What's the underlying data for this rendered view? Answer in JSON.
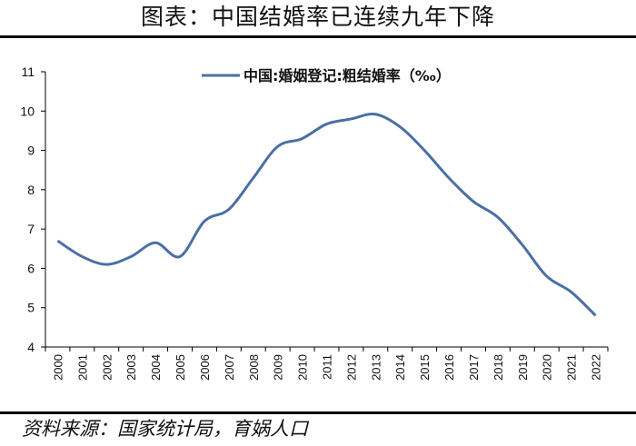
{
  "header": {
    "title": "图表：中国结婚率已连续九年下降"
  },
  "footer": {
    "source": "资料来源：国家统计局，育娲人口"
  },
  "chart_data": {
    "type": "line",
    "title": "",
    "xlabel": "",
    "ylabel": "",
    "categories": [
      "2000",
      "2001",
      "2002",
      "2003",
      "2004",
      "2005",
      "2006",
      "2007",
      "2008",
      "2009",
      "2010",
      "2011",
      "2012",
      "2013",
      "2014",
      "2015",
      "2016",
      "2017",
      "2018",
      "2019",
      "2020",
      "2021",
      "2022"
    ],
    "series": [
      {
        "name": "中国:婚姻登记:粗结婚率（‰）",
        "color": "#4a6fa5",
        "values": [
          6.7,
          6.3,
          6.1,
          6.3,
          6.65,
          6.3,
          7.2,
          7.5,
          8.3,
          9.1,
          9.3,
          9.67,
          9.8,
          9.92,
          9.6,
          9.0,
          8.3,
          7.7,
          7.3,
          6.6,
          5.8,
          5.4,
          4.8
        ]
      }
    ],
    "ylim": [
      4,
      11
    ],
    "yticks": [
      4,
      5,
      6,
      7,
      8,
      9,
      10,
      11
    ],
    "grid": false,
    "legend": "top-center"
  }
}
